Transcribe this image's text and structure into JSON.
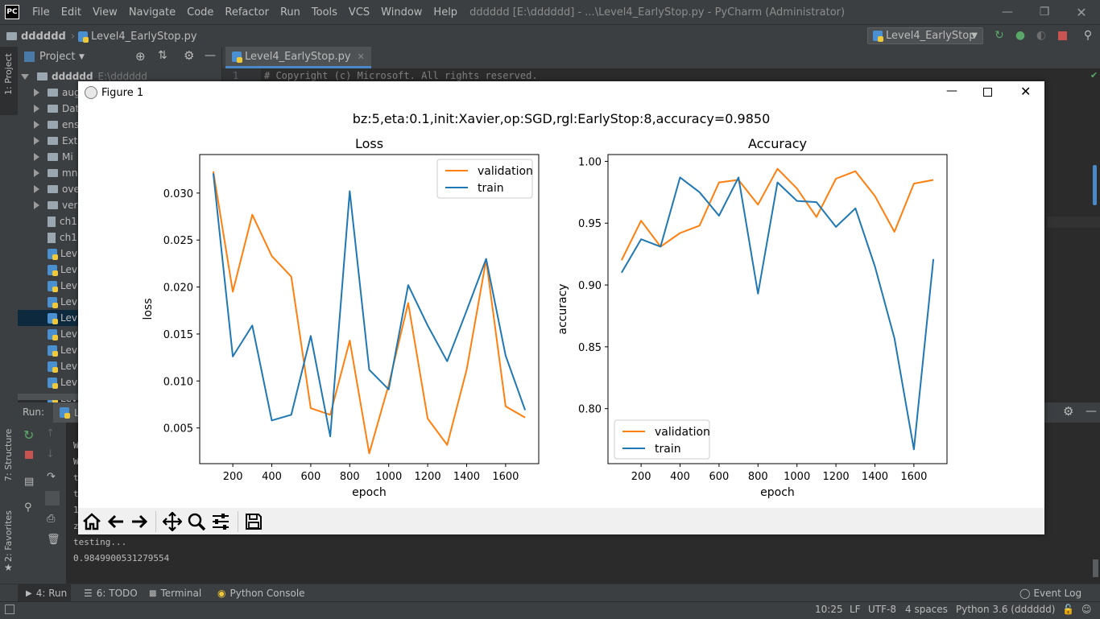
{
  "titlebar": {
    "logo": "PC",
    "menus": [
      "File",
      "Edit",
      "View",
      "Navigate",
      "Code",
      "Refactor",
      "Run",
      "Tools",
      "VCS",
      "Window",
      "Help"
    ],
    "window_title": "dddddd [E:\\dddddd] - ...\\Level4_EarlyStop.py - PyCharm (Administrator)"
  },
  "navbar": {
    "project": "dddddd",
    "file": "Level4_EarlyStop.py",
    "run_config": "Level4_EarlyStop"
  },
  "left_stripe": {
    "project_tab": "1: Project",
    "structure_tab": "7: Structure",
    "favorites_tab": "2: Favorites"
  },
  "project_panel": {
    "title": "Project",
    "root_name": "dddddd",
    "root_path": "E:\\dddddd",
    "items": [
      {
        "label": "aug",
        "kind": "folder"
      },
      {
        "label": "Dat",
        "kind": "folder"
      },
      {
        "label": "ens",
        "kind": "folder"
      },
      {
        "label": "Ext",
        "kind": "folder"
      },
      {
        "label": "Mi",
        "kind": "folder"
      },
      {
        "label": "mn",
        "kind": "folder"
      },
      {
        "label": "ove",
        "kind": "folder"
      },
      {
        "label": "ver",
        "kind": "folder"
      },
      {
        "label": "ch1",
        "kind": "file"
      },
      {
        "label": "ch1",
        "kind": "file"
      },
      {
        "label": "Lev",
        "kind": "py"
      },
      {
        "label": "Lev",
        "kind": "py"
      },
      {
        "label": "Lev",
        "kind": "py"
      },
      {
        "label": "Lev",
        "kind": "py"
      },
      {
        "label": "Lev",
        "kind": "py",
        "selected": true
      },
      {
        "label": "Lev",
        "kind": "py"
      },
      {
        "label": "Lev",
        "kind": "py"
      },
      {
        "label": "Lev",
        "kind": "py"
      },
      {
        "label": "Lev",
        "kind": "py"
      },
      {
        "label": "Lev",
        "kind": "py"
      }
    ]
  },
  "editor": {
    "tab_label": "Level4_EarlyStop.py",
    "line_number": "1",
    "line_text": "# Copyright (c) Microsoft. All rights reserved."
  },
  "run_panel": {
    "title": "Run:",
    "tab_label": "L",
    "console_lines": [
      "testing...",
      "0.9849900531279554"
    ],
    "partial_chars": [
      "W",
      "W",
      "t",
      "t",
      "1",
      "z"
    ]
  },
  "bottom_tabs": {
    "run": "4: Run",
    "todo": "6: TODO",
    "terminal": "Terminal",
    "python_console": "Python Console",
    "event_log": "Event Log"
  },
  "statusbar": {
    "position": "10:25",
    "line_sep": "LF",
    "encoding": "UTF-8",
    "indent": "4 spaces",
    "interpreter": "Python 3.6 (dddddd)"
  },
  "figure": {
    "window_title": "Figure 1",
    "suptitle": "bz:5,eta:0.1,init:Xavier,op:SGD,rgl:EarlyStop:8,accuracy=0.9850",
    "toolbar": [
      "home-icon",
      "back-icon",
      "forward-icon",
      "pan-icon",
      "zoom-icon",
      "configure-icon",
      "save-icon"
    ]
  },
  "chart_data": [
    {
      "type": "line",
      "title": "Loss",
      "xlabel": "epoch",
      "ylabel": "loss",
      "xlim": [
        30,
        1770
      ],
      "ylim": [
        0.0012,
        0.0341
      ],
      "xticks": [
        200,
        400,
        600,
        800,
        1000,
        1200,
        1400,
        1600
      ],
      "yticks": [
        0.005,
        0.01,
        0.015,
        0.02,
        0.025,
        0.03
      ],
      "ytick_labels": [
        "0.005",
        "0.010",
        "0.015",
        "0.020",
        "0.025",
        "0.030"
      ],
      "legend_position": "top-right",
      "x": [
        100,
        200,
        300,
        400,
        500,
        600,
        700,
        800,
        900,
        1000,
        1100,
        1200,
        1300,
        1400,
        1500,
        1600,
        1700
      ],
      "series": [
        {
          "name": "validation",
          "color": "#ff7f0e",
          "values": [
            0.0323,
            0.0195,
            0.0277,
            0.0233,
            0.0211,
            0.0071,
            0.0064,
            0.0143,
            0.0023,
            0.0096,
            0.0183,
            0.006,
            0.0032,
            0.0112,
            0.0229,
            0.0073,
            0.0061
          ]
        },
        {
          "name": "train",
          "color": "#1f77b4",
          "values": [
            0.0321,
            0.0126,
            0.0159,
            0.0058,
            0.0064,
            0.0148,
            0.0041,
            0.0302,
            0.0112,
            0.0091,
            0.0202,
            0.0159,
            0.0121,
            0.0175,
            0.023,
            0.0127,
            0.0069
          ]
        }
      ]
    },
    {
      "type": "line",
      "title": "Accuracy",
      "xlabel": "epoch",
      "ylabel": "accuracy",
      "xlim": [
        30,
        1770
      ],
      "ylim": [
        0.7555,
        1.0055
      ],
      "xticks": [
        200,
        400,
        600,
        800,
        1000,
        1200,
        1400,
        1600
      ],
      "yticks": [
        0.8,
        0.85,
        0.9,
        0.95,
        1.0
      ],
      "ytick_labels": [
        "0.80",
        "0.85",
        "0.90",
        "0.95",
        "1.00"
      ],
      "legend_position": "bottom-left",
      "x": [
        100,
        200,
        300,
        400,
        500,
        600,
        700,
        800,
        900,
        1000,
        1100,
        1200,
        1300,
        1400,
        1500,
        1600,
        1700
      ],
      "series": [
        {
          "name": "validation",
          "color": "#ff7f0e",
          "values": [
            0.92,
            0.952,
            0.931,
            0.942,
            0.948,
            0.983,
            0.985,
            0.965,
            0.994,
            0.978,
            0.955,
            0.986,
            0.992,
            0.972,
            0.943,
            0.982,
            0.985
          ]
        },
        {
          "name": "train",
          "color": "#1f77b4",
          "values": [
            0.91,
            0.937,
            0.931,
            0.987,
            0.975,
            0.956,
            0.987,
            0.893,
            0.983,
            0.968,
            0.967,
            0.947,
            0.962,
            0.915,
            0.857,
            0.767,
            0.921
          ]
        }
      ]
    }
  ]
}
